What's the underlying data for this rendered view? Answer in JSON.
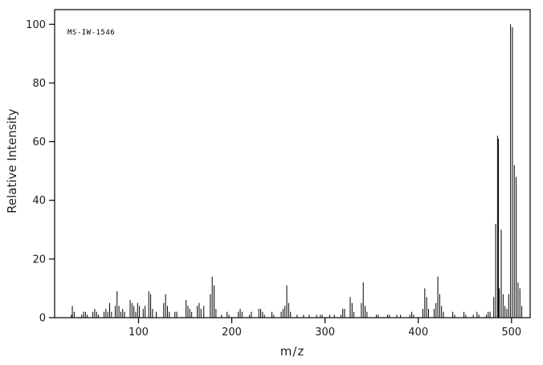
{
  "chart_data": {
    "type": "bar",
    "subtype": "mass-spectrum-stick-plot",
    "title": "",
    "annotation": "MS-IW-1546",
    "xlabel": "m/z",
    "ylabel": "Relative Intensity",
    "xlim": [
      10,
      520
    ],
    "ylim": [
      0,
      105
    ],
    "x_ticks": [
      100,
      200,
      300,
      400,
      500
    ],
    "y_ticks": [
      0,
      20,
      40,
      60,
      80,
      100
    ],
    "grid": false,
    "legend": false,
    "colors": {
      "background": "#ffffff",
      "axis": "#000000",
      "peak": "#000000",
      "text": "#1a1a1a"
    },
    "peaks": [
      [
        28,
        1
      ],
      [
        29,
        4
      ],
      [
        31,
        2
      ],
      [
        39,
        1
      ],
      [
        41,
        2
      ],
      [
        43,
        2
      ],
      [
        45,
        1
      ],
      [
        51,
        2
      ],
      [
        53,
        3
      ],
      [
        55,
        2
      ],
      [
        57,
        1
      ],
      [
        63,
        2
      ],
      [
        65,
        3
      ],
      [
        67,
        2
      ],
      [
        69,
        5
      ],
      [
        71,
        2
      ],
      [
        75,
        4
      ],
      [
        77,
        9
      ],
      [
        79,
        4
      ],
      [
        81,
        2
      ],
      [
        83,
        3
      ],
      [
        85,
        2
      ],
      [
        91,
        6
      ],
      [
        93,
        5
      ],
      [
        95,
        4
      ],
      [
        97,
        2
      ],
      [
        99,
        5
      ],
      [
        101,
        4
      ],
      [
        105,
        3
      ],
      [
        107,
        4
      ],
      [
        111,
        9
      ],
      [
        113,
        8
      ],
      [
        115,
        3
      ],
      [
        119,
        2
      ],
      [
        127,
        5
      ],
      [
        129,
        8
      ],
      [
        131,
        4
      ],
      [
        133,
        2
      ],
      [
        139,
        2
      ],
      [
        141,
        2
      ],
      [
        151,
        6
      ],
      [
        153,
        4
      ],
      [
        155,
        3
      ],
      [
        157,
        2
      ],
      [
        163,
        4
      ],
      [
        165,
        5
      ],
      [
        167,
        3
      ],
      [
        170,
        4
      ],
      [
        177,
        8
      ],
      [
        179,
        14
      ],
      [
        181,
        11
      ],
      [
        183,
        3
      ],
      [
        189,
        1
      ],
      [
        195,
        2
      ],
      [
        197,
        1
      ],
      [
        207,
        2
      ],
      [
        209,
        3
      ],
      [
        211,
        2
      ],
      [
        219,
        1
      ],
      [
        221,
        2
      ],
      [
        229,
        3
      ],
      [
        231,
        3
      ],
      [
        233,
        2
      ],
      [
        235,
        1
      ],
      [
        243,
        2
      ],
      [
        245,
        1
      ],
      [
        253,
        2
      ],
      [
        255,
        3
      ],
      [
        257,
        4
      ],
      [
        259,
        11
      ],
      [
        261,
        5
      ],
      [
        263,
        2
      ],
      [
        270,
        1
      ],
      [
        277,
        1
      ],
      [
        283,
        1
      ],
      [
        291,
        1
      ],
      [
        295,
        1
      ],
      [
        297,
        1
      ],
      [
        305,
        1
      ],
      [
        310,
        1
      ],
      [
        317,
        1
      ],
      [
        319,
        3
      ],
      [
        321,
        3
      ],
      [
        327,
        7
      ],
      [
        329,
        5
      ],
      [
        331,
        2
      ],
      [
        339,
        5
      ],
      [
        341,
        12
      ],
      [
        343,
        4
      ],
      [
        345,
        2
      ],
      [
        355,
        1
      ],
      [
        357,
        1
      ],
      [
        367,
        1
      ],
      [
        369,
        1
      ],
      [
        377,
        1
      ],
      [
        381,
        1
      ],
      [
        391,
        1
      ],
      [
        393,
        2
      ],
      [
        395,
        1
      ],
      [
        405,
        3
      ],
      [
        407,
        10
      ],
      [
        409,
        7
      ],
      [
        411,
        3
      ],
      [
        417,
        3
      ],
      [
        419,
        5
      ],
      [
        421,
        14
      ],
      [
        423,
        8
      ],
      [
        425,
        4
      ],
      [
        427,
        2
      ],
      [
        437,
        2
      ],
      [
        439,
        1
      ],
      [
        449,
        2
      ],
      [
        451,
        1
      ],
      [
        459,
        1
      ],
      [
        463,
        2
      ],
      [
        465,
        1
      ],
      [
        473,
        1
      ],
      [
        475,
        2
      ],
      [
        477,
        2
      ],
      [
        481,
        7
      ],
      [
        483,
        32
      ],
      [
        485,
        62
      ],
      [
        486,
        61
      ],
      [
        487,
        10
      ],
      [
        489,
        30
      ],
      [
        491,
        8
      ],
      [
        493,
        4
      ],
      [
        495,
        3
      ],
      [
        497,
        8
      ],
      [
        499,
        100
      ],
      [
        501,
        99
      ],
      [
        503,
        52
      ],
      [
        505,
        48
      ],
      [
        507,
        12
      ],
      [
        509,
        10
      ],
      [
        511,
        4
      ]
    ]
  }
}
